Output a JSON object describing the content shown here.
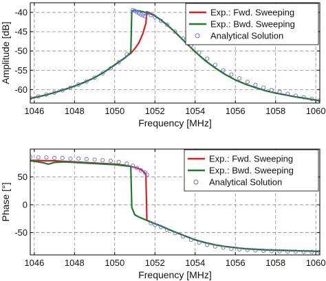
{
  "chart_data": [
    {
      "type": "line",
      "xlabel": "Frequency [MHz]",
      "ylabel": "Amplitude [dB]",
      "xlim": [
        1045.8,
        1060.2
      ],
      "ylim": [
        -63.5,
        -37.5
      ],
      "xticks": [
        1046,
        1048,
        1050,
        1052,
        1054,
        1056,
        1058,
        1060
      ],
      "yticks": [
        -40,
        -45,
        -50,
        -55,
        -60
      ],
      "xtick_labels": [
        "1046",
        "1048",
        "1050",
        "1052",
        "1054",
        "1056",
        "1058",
        "1060"
      ],
      "ytick_labels": [
        "-40",
        "-45",
        "-50",
        "-55",
        "-60"
      ],
      "grid": true,
      "legend_position": "top-right",
      "series": [
        {
          "name": "Exp.: Fwd. Sweeping",
          "color": "#e31a1c",
          "style": "line",
          "x": [
            1045.8,
            1046.5,
            1047,
            1047.5,
            1048,
            1048.5,
            1049,
            1049.5,
            1050,
            1050.5,
            1050.8,
            1051,
            1051.2,
            1051.4,
            1051.55,
            1051.6,
            1051.9,
            1052.2,
            1052.6,
            1053,
            1053.5,
            1054,
            1054.5,
            1055,
            1055.5,
            1056,
            1056.5,
            1057,
            1057.5,
            1058,
            1058.5,
            1059,
            1059.5,
            1060.2
          ],
          "y": [
            -62.3,
            -61.5,
            -60.8,
            -60,
            -59.1,
            -58.1,
            -56.9,
            -55.4,
            -53.6,
            -51.8,
            -50.6,
            -49.4,
            -47.9,
            -45.5,
            -42.8,
            -39.8,
            -40.5,
            -41.6,
            -43.2,
            -45.1,
            -47.7,
            -50.2,
            -52.5,
            -54.4,
            -56.1,
            -57.5,
            -58.6,
            -59.5,
            -60.3,
            -60.9,
            -61.4,
            -61.9,
            -62.3,
            -62.9
          ]
        },
        {
          "name": "Exp.: Bwd. Sweeping",
          "color": "#1a7a2e",
          "style": "line",
          "x": [
            1045.8,
            1046.5,
            1047,
            1047.5,
            1048,
            1048.5,
            1049,
            1049.5,
            1050,
            1050.5,
            1050.8,
            1050.85,
            1051,
            1051.2,
            1051.4,
            1051.6,
            1051.9,
            1052.2,
            1052.6,
            1053,
            1053.5,
            1054,
            1054.5,
            1055,
            1055.5,
            1056,
            1056.5,
            1057,
            1057.5,
            1058,
            1058.5,
            1059,
            1059.5,
            1060.2
          ],
          "y": [
            -62.3,
            -61.5,
            -60.8,
            -60,
            -59.1,
            -58.1,
            -56.9,
            -55.4,
            -53.6,
            -51.8,
            -50.4,
            -39.6,
            -39.5,
            -39.6,
            -39.8,
            -40.1,
            -40.6,
            -41.6,
            -43.2,
            -45.1,
            -47.7,
            -50.2,
            -52.5,
            -54.4,
            -56.1,
            -57.5,
            -58.6,
            -59.5,
            -60.3,
            -60.9,
            -61.4,
            -61.9,
            -62.3,
            -62.9
          ]
        },
        {
          "name": "Analytical Solution",
          "color": "#6a6ae0",
          "style": "marker",
          "x": [
            1045.8,
            1046.2,
            1046.6,
            1047,
            1047.4,
            1047.8,
            1048.2,
            1048.6,
            1049,
            1049.4,
            1049.8,
            1050.2,
            1050.6,
            1050.9,
            1051,
            1051.1,
            1051.2,
            1051.3,
            1051.4,
            1051.5,
            1051.6,
            1051.8,
            1052,
            1052.3,
            1052.6,
            1053,
            1053.4,
            1053.8,
            1054.2,
            1054.6,
            1055,
            1055.4,
            1055.8,
            1056.2,
            1056.6,
            1057,
            1057.4,
            1057.8,
            1058.2,
            1058.6,
            1059,
            1059.4,
            1059.8,
            1060.2
          ],
          "y": [
            -62.2,
            -61.8,
            -61.3,
            -60.8,
            -60.2,
            -59.5,
            -58.7,
            -57.9,
            -56.9,
            -55.8,
            -54.5,
            -52.9,
            -50.9,
            -39.4,
            -39.6,
            -39.9,
            -40.2,
            -40.5,
            -40.8,
            -41,
            -40.2,
            -40.7,
            -41.2,
            -42.2,
            -43.2,
            -45,
            -46.8,
            -48.6,
            -50.4,
            -52,
            -53.6,
            -55,
            -56.1,
            -57.1,
            -58,
            -58.8,
            -59.5,
            -60.1,
            -60.6,
            -61.1,
            -61.6,
            -62,
            -62.4,
            -62.8
          ]
        }
      ]
    },
    {
      "type": "line",
      "xlabel": "Frequency [MHz]",
      "ylabel": "Phase [°]",
      "xlim": [
        1045.8,
        1060.2
      ],
      "ylim": [
        -90,
        100
      ],
      "xticks": [
        1046,
        1048,
        1050,
        1052,
        1054,
        1056,
        1058,
        1060
      ],
      "yticks": [
        50,
        0,
        -50
      ],
      "xtick_labels": [
        "1046",
        "1048",
        "1050",
        "1052",
        "1054",
        "1056",
        "1058",
        "1060"
      ],
      "ytick_labels": [
        "50",
        "0",
        "-50"
      ],
      "grid": true,
      "legend_position": "top-right",
      "series": [
        {
          "name": "Exp.: Fwd. Sweeping",
          "color": "#e31a1c",
          "style": "line",
          "x": [
            1045.8,
            1046.5,
            1047,
            1047.5,
            1048,
            1048.5,
            1049,
            1049.5,
            1050,
            1050.5,
            1050.8,
            1051,
            1051.2,
            1051.4,
            1051.55,
            1051.6,
            1051.8,
            1052,
            1052.3,
            1052.6,
            1053,
            1053.5,
            1054,
            1054.5,
            1055,
            1055.5,
            1056,
            1056.5,
            1057,
            1057.5,
            1058,
            1058.5,
            1059,
            1059.5,
            1060.2
          ],
          "y": [
            80,
            79,
            79,
            78,
            77,
            76,
            75,
            74,
            73,
            71,
            69,
            67,
            65,
            61,
            55,
            -28,
            -31,
            -34,
            -38,
            -43,
            -49,
            -56,
            -63,
            -68,
            -72,
            -75,
            -77,
            -79,
            -80,
            -81,
            -81.5,
            -82,
            -82.5,
            -83,
            -83.5
          ]
        },
        {
          "name": "Exp.: Bwd. Sweeping",
          "color": "#1a7a2e",
          "style": "line",
          "x": [
            1045.8,
            1046.2,
            1046.5,
            1046.7,
            1047,
            1047.5,
            1048,
            1048.5,
            1049,
            1049.5,
            1050,
            1050.5,
            1050.8,
            1050.85,
            1051,
            1051.2,
            1051.4,
            1051.6,
            1051.8,
            1052,
            1052.3,
            1052.6,
            1053,
            1053.5,
            1054,
            1054.5,
            1055,
            1055.5,
            1056,
            1056.5,
            1057,
            1057.5,
            1058,
            1058.5,
            1059,
            1059.5,
            1060.2
          ],
          "y": [
            79,
            77,
            75,
            73,
            76,
            77,
            76,
            75,
            74,
            73,
            72,
            70,
            69,
            -5,
            -18,
            -22,
            -25,
            -28,
            -31,
            -34,
            -38,
            -43,
            -49,
            -56,
            -63,
            -68,
            -72,
            -75,
            -77,
            -79,
            -80,
            -81,
            -81.5,
            -82,
            -82.5,
            -83,
            -83.5
          ]
        },
        {
          "name": "Analytical Solution",
          "color": "#6a6ae0",
          "style": "marker",
          "x": [
            1045.8,
            1046.2,
            1046.6,
            1047,
            1047.4,
            1047.8,
            1048.2,
            1048.6,
            1049,
            1049.4,
            1049.8,
            1050.2,
            1050.6,
            1050.9,
            1051.1,
            1051.3,
            1051.5,
            1051.6,
            1051.8,
            1052,
            1052.3,
            1052.6,
            1053,
            1053.4,
            1053.8,
            1054.2,
            1054.6,
            1055,
            1055.4,
            1055.8,
            1056.2,
            1056.6,
            1057,
            1057.4,
            1057.8,
            1058.2,
            1058.6,
            1059,
            1059.4,
            1059.8,
            1060.2
          ],
          "y": [
            86,
            85,
            85,
            84,
            84,
            83,
            83,
            82,
            81,
            80,
            79,
            77,
            74,
            70,
            66,
            62,
            58,
            54,
            -33,
            -36,
            -40,
            -45,
            -51,
            -57,
            -63,
            -68,
            -72,
            -75,
            -77,
            -79,
            -80,
            -81,
            -82,
            -82.5,
            -83,
            -83.5,
            -84,
            -84,
            -84.5,
            -84.5,
            -85
          ]
        }
      ]
    }
  ]
}
